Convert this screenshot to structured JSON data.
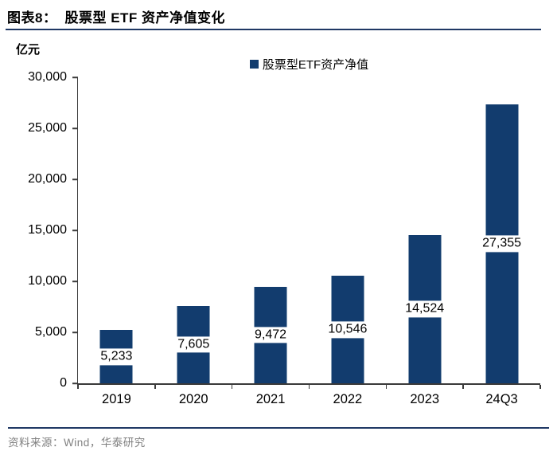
{
  "header": {
    "tag": "图表8：",
    "title": "股票型 ETF 资产净值变化"
  },
  "chart_data": {
    "type": "bar",
    "title": "股票型 ETF 资产净值变化",
    "ylabel": "亿元",
    "xlabel": "",
    "legend": [
      "股票型ETF资产净值"
    ],
    "legend_position": "top-center",
    "categories": [
      "2019",
      "2020",
      "2021",
      "2022",
      "2023",
      "24Q3"
    ],
    "values": [
      5233,
      7605,
      9472,
      10546,
      14524,
      27355
    ],
    "value_labels": [
      "5,233",
      "7,605",
      "9,472",
      "10,546",
      "14,524",
      "27,355"
    ],
    "ylim": [
      0,
      30000
    ],
    "ytick_step": 5000,
    "ytick_labels": [
      "0",
      "5,000",
      "10,000",
      "15,000",
      "20,000",
      "25,000",
      "30,000"
    ],
    "grid": false,
    "data_label_placement": "center-on-bar-with-white-box"
  },
  "colors": {
    "bar": "#123C6E",
    "rule": "#1F3864",
    "axis": "#3A3A3A",
    "source_text": "#808080"
  },
  "footer": {
    "source": "资料来源：Wind，华泰研究"
  }
}
